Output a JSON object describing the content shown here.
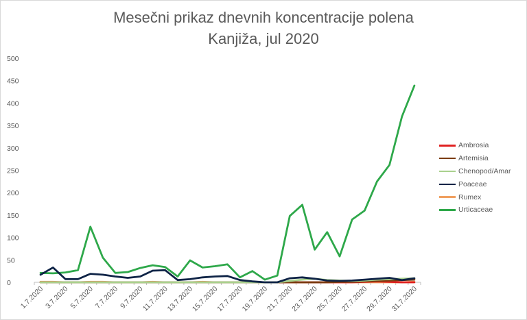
{
  "chart_data": {
    "type": "line",
    "title_line1": "Mesečni prikaz dnevnih koncentracije polena",
    "title_line2": "Kanjiža, jul 2020",
    "xlabel": "",
    "ylabel": "",
    "ylim": [
      0,
      500
    ],
    "y_ticks": [
      0,
      50,
      100,
      150,
      200,
      250,
      300,
      350,
      400,
      450,
      500
    ],
    "grid": false,
    "legend_position": "right",
    "categories": [
      "1.7.2020",
      "2.7.2020",
      "3.7.2020",
      "4.7.2020",
      "5.7.2020",
      "6.7.2020",
      "7.7.2020",
      "8.7.2020",
      "9.7.2020",
      "10.7.2020",
      "11.7.2020",
      "12.7.2020",
      "13.7.2020",
      "14.7.2020",
      "15.7.2020",
      "16.7.2020",
      "17.7.2020",
      "18.7.2020",
      "19.7.2020",
      "20.7.2020",
      "21.7.2020",
      "22.7.2020",
      "23.7.2020",
      "24.7.2020",
      "25.7.2020",
      "26.7.2020",
      "27.7.2020",
      "28.7.2020",
      "29.7.2020",
      "30.7.2020",
      "31.7.2020"
    ],
    "tick_labels": [
      "1.7.2020",
      "",
      "3.7.2020",
      "",
      "5.7.2020",
      "",
      "7.7.2020",
      "",
      "9.7.2020",
      "",
      "11.7.2020",
      "",
      "13.7.2020",
      "",
      "15.7.2020",
      "",
      "17.7.2020",
      "",
      "19.7.2020",
      "",
      "21.7.2020",
      "",
      "23.7.2020",
      "",
      "25.7.2020",
      "",
      "27.7.2020",
      "",
      "29.7.2020",
      "",
      "31.7.2020"
    ],
    "series": [
      {
        "name": "Ambrosia",
        "color": "#e02020",
        "values": [
          0,
          0,
          0,
          0,
          0,
          0,
          0,
          0,
          0,
          0,
          0,
          0,
          0,
          0,
          0,
          0,
          0,
          0,
          0,
          0,
          0,
          0,
          0,
          0,
          0,
          0,
          1,
          2,
          1,
          0,
          0
        ]
      },
      {
        "name": "Artemisia",
        "color": "#7a3b10",
        "values": [
          0,
          0,
          0,
          0,
          0,
          0,
          0,
          0,
          0,
          0,
          0,
          0,
          0,
          0,
          0,
          0,
          0,
          0,
          0,
          0,
          0,
          0,
          0,
          0,
          1,
          1,
          2,
          3,
          4,
          5,
          6
        ]
      },
      {
        "name": "Chenopod/Amar",
        "color": "#a9d18e",
        "values": [
          0,
          0,
          0,
          0,
          0,
          0,
          0,
          0,
          0,
          0,
          0,
          0,
          0,
          0,
          0,
          0,
          0,
          0,
          0,
          0,
          3,
          6,
          8,
          5,
          4,
          3,
          4,
          6,
          7,
          8,
          9
        ]
      },
      {
        "name": "Poaceae",
        "color": "#0e2346",
        "values": [
          17,
          33,
          7,
          7,
          19,
          17,
          13,
          10,
          13,
          26,
          27,
          5,
          7,
          11,
          13,
          14,
          5,
          2,
          0,
          0,
          9,
          11,
          8,
          4,
          3,
          4,
          6,
          8,
          10,
          5,
          9
        ]
      },
      {
        "name": "Rumex",
        "color": "#f0a060",
        "values": [
          1,
          1,
          0,
          0,
          1,
          1,
          0,
          0,
          0,
          1,
          0,
          0,
          0,
          1,
          0,
          0,
          0,
          0,
          0,
          0,
          0,
          0,
          0,
          0,
          0,
          0,
          0,
          0,
          0,
          0,
          1
        ]
      },
      {
        "name": "Urticaceae",
        "color": "#2ea84a",
        "values": [
          21,
          20,
          22,
          27,
          124,
          55,
          21,
          23,
          32,
          38,
          34,
          13,
          49,
          33,
          36,
          40,
          11,
          25,
          6,
          15,
          148,
          173,
          73,
          112,
          58,
          140,
          160,
          225,
          262,
          370,
          439
        ]
      }
    ]
  }
}
